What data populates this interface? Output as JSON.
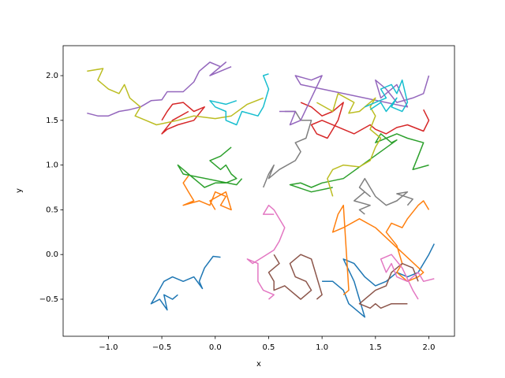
{
  "chart_data": {
    "type": "line",
    "x_label": "x",
    "y_label": "y",
    "xlim": [
      -1.424,
      2.24
    ],
    "ylim": [
      -0.914,
      2.335
    ],
    "xticks": [
      {
        "value": -1.0,
        "label": "−1.0"
      },
      {
        "value": -0.5,
        "label": "−0.5"
      },
      {
        "value": 0,
        "label": "0.0"
      },
      {
        "value": 0.5,
        "label": "0.5"
      },
      {
        "value": 1.0,
        "label": "1.0"
      },
      {
        "value": 1.5,
        "label": "1.5"
      },
      {
        "value": 2.0,
        "label": "2.0"
      }
    ],
    "yticks": [
      {
        "value": -0.5,
        "label": "−0.5"
      },
      {
        "value": 0,
        "label": "0.0"
      },
      {
        "value": 0.5,
        "label": "0.5"
      },
      {
        "value": 1.0,
        "label": "1.0"
      },
      {
        "value": 1.5,
        "label": "1.5"
      },
      {
        "value": 2.0,
        "label": "2.0"
      }
    ],
    "series": [
      {
        "color": "#1f77b4",
        "x": [
          0.05,
          -0.02,
          -0.1,
          -0.15,
          -0.12,
          -0.2,
          -0.3,
          -0.4,
          -0.48,
          -0.55,
          -0.6,
          -0.52,
          -0.45,
          -0.48,
          -0.4,
          -0.35
        ],
        "values": [
          -0.03,
          -0.02,
          -0.15,
          -0.3,
          -0.38,
          -0.25,
          -0.3,
          -0.25,
          -0.3,
          -0.45,
          -0.55,
          -0.5,
          -0.62,
          -0.45,
          -0.5,
          -0.45
        ]
      },
      {
        "color": "#ff7f0e",
        "x": [
          -0.25,
          -0.3,
          -0.25,
          -0.2,
          -0.3,
          -0.15,
          -0.05,
          0,
          0.1,
          0.05,
          0.15,
          0.1,
          -0.05,
          0
        ],
        "values": [
          0.88,
          0.8,
          0.7,
          0.6,
          0.55,
          0.6,
          0.55,
          0.7,
          0.65,
          0.55,
          0.5,
          0.7,
          0.6,
          0.5
        ]
      },
      {
        "color": "#2ca02c",
        "x": [
          0.15,
          0.05,
          -0.05,
          0.05,
          0.1,
          0.15,
          0.2,
          0.1,
          0,
          -0.1,
          -0.15,
          -0.25,
          -0.35,
          -0.3,
          0.2,
          0.25
        ],
        "values": [
          1.2,
          1.1,
          1.05,
          0.95,
          1.0,
          0.9,
          0.85,
          0.8,
          0.8,
          0.75,
          0.8,
          0.9,
          1.0,
          0.9,
          0.78,
          0.85
        ]
      },
      {
        "color": "#d62728",
        "x": [
          -0.5,
          -0.45,
          -0.4,
          -0.3,
          -0.2,
          -0.1,
          -0.2,
          -0.35,
          -0.45,
          -0.5,
          -0.4,
          -0.25
        ],
        "values": [
          1.5,
          1.6,
          1.68,
          1.7,
          1.6,
          1.65,
          1.5,
          1.45,
          1.4,
          1.35,
          1.5,
          1.6
        ]
      },
      {
        "color": "#9467bd",
        "x": [
          -1.2,
          -1.1,
          -1.0,
          -0.9,
          -0.8,
          -0.7,
          -0.6,
          -0.5,
          -0.45,
          -0.3,
          -0.2,
          -0.15,
          -0.05,
          0.05,
          0.1,
          -0.05,
          0.15
        ],
        "values": [
          1.58,
          1.55,
          1.55,
          1.6,
          1.62,
          1.65,
          1.72,
          1.73,
          1.82,
          1.82,
          1.93,
          2.05,
          2.15,
          2.1,
          2.15,
          2.0,
          2.1
        ]
      },
      {
        "color": "#8c564b",
        "x": [
          0.55,
          0.6,
          0.5,
          0.55,
          0.55,
          0.65,
          0.7,
          0.8,
          0.9,
          0.85,
          0.75,
          0.7,
          0.8,
          0.9,
          1.0,
          0.95
        ],
        "values": [
          0.0,
          -0.1,
          -0.2,
          -0.3,
          -0.4,
          -0.35,
          -0.4,
          -0.5,
          -0.4,
          -0.3,
          -0.25,
          -0.1,
          0.0,
          -0.05,
          -0.45,
          -0.5
        ]
      },
      {
        "color": "#e377c2",
        "x": [
          0.5,
          0.55,
          0.45,
          0.4,
          0.4,
          0.3,
          0.35,
          0.55,
          0.6,
          0.65,
          0.6,
          0.55,
          0.5,
          0.45,
          0.55
        ],
        "values": [
          -0.5,
          -0.45,
          -0.4,
          -0.3,
          -0.1,
          -0.05,
          -0.1,
          0.05,
          0.15,
          0.3,
          0.4,
          0.5,
          0.55,
          0.45,
          0.45
        ]
      },
      {
        "color": "#7f7f7f",
        "x": [
          0.45,
          0.5,
          0.55,
          0.5,
          0.6,
          0.75,
          0.8,
          0.75,
          0.85,
          0.9,
          0.8,
          0.75,
          0.65
        ],
        "values": [
          0.75,
          0.9,
          1.0,
          0.85,
          0.95,
          1.05,
          1.15,
          1.25,
          1.3,
          1.5,
          1.5,
          1.6,
          1.6
        ]
      },
      {
        "color": "#bcbd22",
        "x": [
          -1.2,
          -1.05,
          -1.1,
          -1.0,
          -0.9,
          -0.85,
          -0.8,
          -0.7,
          -0.75,
          -0.65,
          -0.55,
          -0.35,
          -0.2,
          0,
          0.15,
          0.3,
          0.45
        ],
        "values": [
          2.05,
          2.08,
          1.95,
          1.85,
          1.8,
          1.9,
          1.75,
          1.65,
          1.55,
          1.5,
          1.45,
          1.5,
          1.55,
          1.52,
          1.55,
          1.68,
          1.75
        ]
      },
      {
        "color": "#17becf",
        "x": [
          0.5,
          0.45,
          0.5,
          0.45,
          0.4,
          0.25,
          0.2,
          0.1,
          0.1,
          0.0,
          -0.05,
          0.1,
          0.2
        ],
        "values": [
          2.02,
          2.0,
          1.85,
          1.65,
          1.55,
          1.6,
          1.45,
          1.5,
          1.6,
          1.65,
          1.72,
          1.68,
          1.72
        ]
      },
      {
        "color": "#1f77b4",
        "x": [
          2.05,
          2.0,
          1.95,
          1.9,
          1.8,
          1.7,
          1.6,
          1.5,
          1.4,
          1.3,
          1.2,
          1.3,
          1.35,
          1.4,
          1.3,
          1.25,
          1.2,
          1.1,
          1.0
        ],
        "values": [
          0.12,
          0.0,
          -0.1,
          -0.2,
          -0.25,
          -0.2,
          -0.3,
          -0.35,
          -0.25,
          -0.1,
          -0.05,
          -0.3,
          -0.5,
          -0.7,
          -0.6,
          -0.55,
          -0.4,
          -0.3,
          -0.3
        ]
      },
      {
        "color": "#ff7f0e",
        "x": [
          2.0,
          1.95,
          1.9,
          1.8,
          1.75,
          1.65,
          1.6,
          1.7,
          1.75,
          1.7,
          1.8,
          1.9,
          1.95,
          1.5,
          1.35,
          1.2,
          1.1,
          1.15,
          1.2,
          1.25,
          1.2
        ],
        "values": [
          0.5,
          0.6,
          0.55,
          0.4,
          0.3,
          0.35,
          0.25,
          0.1,
          -0.1,
          -0.2,
          -0.3,
          -0.25,
          -0.2,
          0.3,
          0.4,
          0.3,
          0.25,
          0.45,
          0.55,
          -0.4,
          -0.45
        ]
      },
      {
        "color": "#2ca02c",
        "x": [
          2.0,
          1.85,
          1.9,
          1.95,
          1.8,
          1.7,
          1.6,
          1.5,
          1.55,
          1.65,
          1.7,
          1.2,
          1.0,
          0.9,
          0.8,
          0.7,
          0.9,
          1.1
        ],
        "values": [
          1.0,
          0.95,
          1.1,
          1.25,
          1.3,
          1.35,
          1.3,
          1.25,
          1.35,
          1.25,
          1.28,
          0.85,
          0.8,
          0.75,
          0.8,
          0.78,
          0.7,
          0.75
        ]
      },
      {
        "color": "#d62728",
        "x": [
          0.8,
          0.9,
          1.0,
          1.1,
          1.2,
          1.15,
          1.1,
          1.05,
          0.95,
          0.9,
          1.0,
          1.3,
          1.45,
          1.5,
          1.6,
          1.7,
          1.8,
          1.95,
          2.0,
          1.95
        ],
        "values": [
          1.7,
          1.65,
          1.55,
          1.6,
          1.7,
          1.5,
          1.4,
          1.3,
          1.35,
          1.45,
          1.5,
          1.35,
          1.45,
          1.4,
          1.35,
          1.42,
          1.45,
          1.38,
          1.5,
          1.62
        ]
      },
      {
        "color": "#9467bd",
        "x": [
          2.0,
          1.95,
          1.85,
          1.7,
          1.6,
          1.5,
          1.55,
          1.7,
          1.8,
          0.8,
          0.75,
          0.9,
          1.0,
          0.8,
          0.7,
          0.75,
          0.6
        ],
        "values": [
          2.0,
          1.8,
          1.75,
          1.7,
          1.85,
          1.95,
          1.75,
          1.9,
          1.65,
          1.9,
          2.0,
          1.95,
          2.0,
          1.5,
          1.45,
          1.6,
          1.6
        ]
      },
      {
        "color": "#8c564b",
        "x": [
          1.8,
          1.65,
          1.55,
          1.5,
          1.45,
          1.35,
          1.5,
          1.6,
          1.65,
          1.75,
          1.85,
          1.9
        ],
        "values": [
          -0.55,
          -0.55,
          -0.6,
          -0.55,
          -0.6,
          -0.55,
          -0.4,
          -0.35,
          -0.2,
          -0.1,
          -0.15,
          -0.3
        ]
      },
      {
        "color": "#e377c2",
        "x": [
          2.05,
          1.95,
          1.9,
          1.8,
          1.7,
          1.65,
          1.6,
          1.55,
          1.65,
          1.75,
          1.85,
          1.9
        ],
        "values": [
          -0.27,
          -0.3,
          -0.2,
          -0.3,
          -0.25,
          -0.1,
          -0.2,
          -0.05,
          0.0,
          -0.15,
          -0.4,
          -0.5
        ]
      },
      {
        "color": "#7f7f7f",
        "x": [
          1.4,
          1.35,
          1.45,
          1.3,
          1.4,
          1.45,
          1.35,
          1.4,
          1.5,
          1.6,
          1.7,
          1.8,
          1.7,
          1.85,
          1.8
        ],
        "values": [
          0.45,
          0.5,
          0.55,
          0.6,
          0.7,
          0.65,
          0.75,
          0.85,
          0.65,
          0.55,
          0.6,
          0.7,
          0.68,
          0.62,
          0.55
        ]
      },
      {
        "color": "#bcbd22",
        "x": [
          1.1,
          1.05,
          1.1,
          1.2,
          1.35,
          1.45,
          1.5,
          1.55,
          1.45,
          1.5,
          1.45,
          1.5,
          1.35,
          1.25,
          1.3,
          1.15,
          1.1,
          0.95
        ],
        "values": [
          0.65,
          0.85,
          0.95,
          1.0,
          0.98,
          1.05,
          1.2,
          1.3,
          1.4,
          1.55,
          1.65,
          1.75,
          1.6,
          1.58,
          1.7,
          1.8,
          1.6,
          1.7
        ]
      },
      {
        "color": "#17becf",
        "x": [
          1.4,
          1.5,
          1.6,
          1.55,
          1.65,
          1.7,
          1.75,
          1.8,
          1.75,
          1.65,
          1.7,
          1.6,
          1.55,
          1.45
        ],
        "values": [
          1.65,
          1.7,
          1.75,
          1.85,
          1.9,
          1.8,
          1.95,
          1.7,
          1.6,
          1.65,
          1.75,
          1.6,
          1.7,
          1.62
        ]
      }
    ]
  }
}
